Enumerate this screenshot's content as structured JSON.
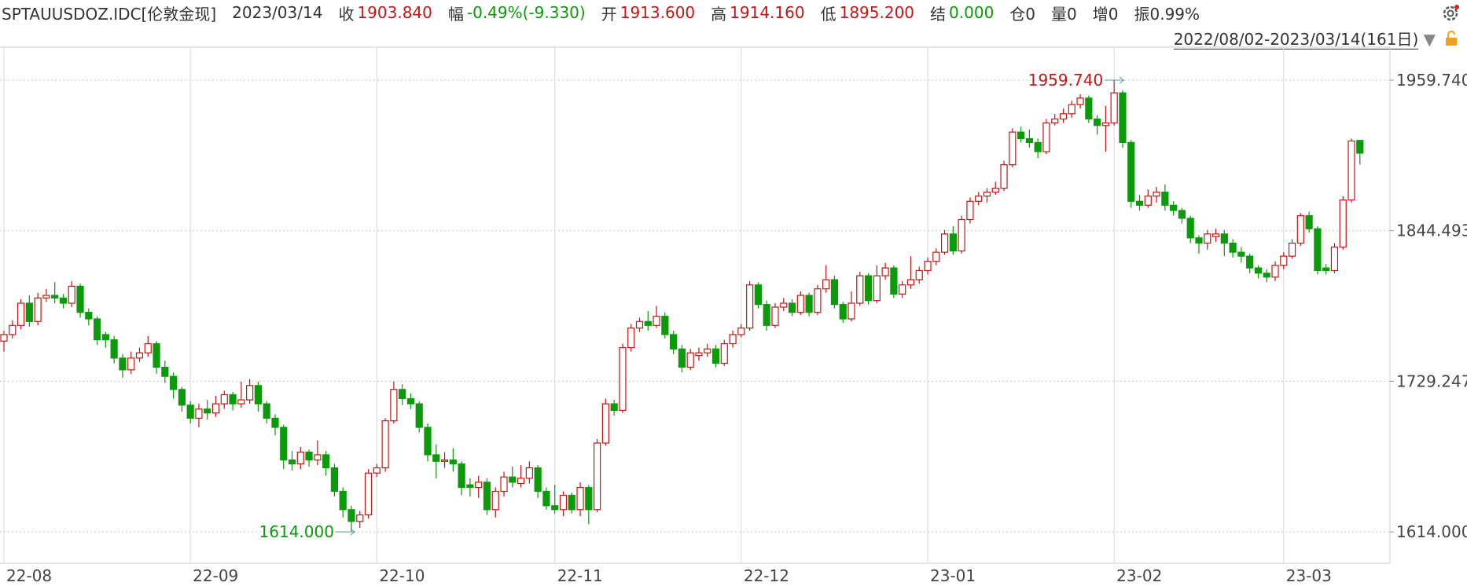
{
  "header": {
    "symbol": "SPTAUUSDOZ.IDC[伦敦金现]",
    "date": "2023/03/14",
    "close_label": "收",
    "close": "1903.840",
    "change_label": "幅",
    "change": "-0.49%(-9.330)",
    "open_label": "开",
    "open": "1913.600",
    "high_label": "高",
    "high": "1914.160",
    "low_label": "低",
    "low": "1895.200",
    "settle_label": "结",
    "settle": "0.000",
    "position": "仓0",
    "volume": "量0",
    "increase": "增0",
    "amplitude": "振0.99%",
    "range": "2022/08/02-2023/03/14(161日)"
  },
  "chart_data": {
    "type": "candlestick",
    "categories": [
      "22-08",
      null,
      null,
      null,
      null,
      null,
      null,
      null,
      null,
      null,
      null,
      null,
      null,
      null,
      null,
      null,
      null,
      null,
      null,
      null,
      null,
      null,
      "22-09",
      null,
      null,
      null,
      null,
      null,
      null,
      null,
      null,
      null,
      null,
      null,
      null,
      null,
      null,
      null,
      null,
      null,
      null,
      null,
      null,
      null,
      "22-10",
      null,
      null,
      null,
      null,
      null,
      null,
      null,
      null,
      null,
      null,
      null,
      null,
      null,
      null,
      null,
      null,
      null,
      null,
      null,
      null,
      "22-11",
      null,
      null,
      null,
      null,
      null,
      null,
      null,
      null,
      null,
      null,
      null,
      null,
      null,
      null,
      null,
      null,
      null,
      null,
      null,
      null,
      null,
      "22-12",
      null,
      null,
      null,
      null,
      null,
      null,
      null,
      null,
      null,
      null,
      null,
      null,
      null,
      null,
      null,
      null,
      null,
      null,
      null,
      null,
      null,
      "23-01",
      null,
      null,
      null,
      null,
      null,
      null,
      null,
      null,
      null,
      null,
      null,
      null,
      null,
      null,
      null,
      null,
      null,
      null,
      null,
      null,
      null,
      "23-02",
      null,
      null,
      null,
      null,
      null,
      null,
      null,
      null,
      null,
      null,
      null,
      null,
      null,
      null,
      null,
      null,
      null,
      null,
      null,
      "23-03",
      null,
      null,
      null,
      null,
      null,
      null,
      null,
      null,
      null
    ],
    "open": [
      1760,
      1765,
      1772,
      1789,
      1775,
      1793,
      1795,
      1793,
      1789,
      1802,
      1782,
      1777,
      1765,
      1761,
      1747,
      1738,
      1747,
      1751,
      1758,
      1740,
      1733,
      1723,
      1711,
      1701,
      1708,
      1705,
      1712,
      1719,
      1712,
      1715,
      1726,
      1712,
      1701,
      1694,
      1669,
      1666,
      1675,
      1669,
      1673,
      1663,
      1645,
      1631,
      1622,
      1627,
      1659,
      1663,
      1699,
      1723,
      1716,
      1712,
      1694,
      1673,
      1668,
      1669,
      1666,
      1650,
      1648,
      1652,
      1631,
      1645,
      1656,
      1651,
      1655,
      1663,
      1645,
      1634,
      1631,
      1642,
      1631,
      1648,
      1631,
      1682,
      1712,
      1707,
      1755,
      1770,
      1775,
      1772,
      1779,
      1765,
      1754,
      1740,
      1749,
      1751,
      1754,
      1743,
      1758,
      1765,
      1770,
      1803,
      1788,
      1772,
      1786,
      1789,
      1782,
      1795,
      1782,
      1800,
      1807,
      1788,
      1777,
      1789,
      1810,
      1791,
      1810,
      1816,
      1796,
      1803,
      1807,
      1814,
      1821,
      1828,
      1842,
      1829,
      1853,
      1867,
      1871,
      1874,
      1877,
      1895,
      1920,
      1915,
      1912,
      1905,
      1927,
      1930,
      1934,
      1941,
      1946,
      1930,
      1925,
      1927,
      1950,
      1912,
      1867,
      1864,
      1871,
      1874,
      1864,
      1860,
      1854,
      1839,
      1835,
      1840,
      1842,
      1835,
      1828,
      1825,
      1816,
      1812,
      1809,
      1818,
      1825,
      1835,
      1856,
      1846,
      1816,
      1814,
      1832,
      1868,
      1913.6
    ],
    "high": [
      1768,
      1776,
      1792,
      1795,
      1797,
      1800,
      1805,
      1796,
      1806,
      1804,
      1785,
      1779,
      1767,
      1764,
      1750,
      1752,
      1755,
      1764,
      1760,
      1745,
      1736,
      1725,
      1714,
      1712,
      1715,
      1718,
      1722,
      1721,
      1729,
      1731,
      1729,
      1714,
      1704,
      1696,
      1676,
      1679,
      1677,
      1684,
      1676,
      1666,
      1648,
      1634,
      1630,
      1662,
      1666,
      1701,
      1729,
      1727,
      1720,
      1714,
      1697,
      1681,
      1675,
      1678,
      1668,
      1655,
      1657,
      1655,
      1648,
      1660,
      1664,
      1665,
      1668,
      1665,
      1648,
      1650,
      1645,
      1644,
      1652,
      1650,
      1685,
      1716,
      1715,
      1758,
      1773,
      1778,
      1783,
      1787,
      1782,
      1768,
      1757,
      1754,
      1755,
      1758,
      1757,
      1761,
      1768,
      1773,
      1806,
      1805,
      1791,
      1789,
      1793,
      1792,
      1798,
      1797,
      1803,
      1818,
      1810,
      1790,
      1798,
      1813,
      1812,
      1818,
      1820,
      1818,
      1806,
      1825,
      1817,
      1824,
      1831,
      1845,
      1848,
      1856,
      1870,
      1874,
      1877,
      1882,
      1898,
      1923,
      1924,
      1922,
      1915,
      1930,
      1934,
      1938,
      1944,
      1949,
      1948,
      1933,
      1940,
      1959.74,
      1952,
      1914,
      1872,
      1876,
      1878,
      1880,
      1867,
      1862,
      1856,
      1841,
      1845,
      1846,
      1845,
      1838,
      1832,
      1827,
      1818,
      1815,
      1821,
      1828,
      1838,
      1858,
      1859,
      1848,
      1819,
      1835,
      1871,
      1915,
      1914.16
    ],
    "low": [
      1752,
      1762,
      1769,
      1771,
      1772,
      1790,
      1789,
      1785,
      1786,
      1778,
      1772,
      1757,
      1755,
      1743,
      1732,
      1735,
      1744,
      1748,
      1735,
      1728,
      1716,
      1706,
      1697,
      1694,
      1700,
      1702,
      1708,
      1707,
      1709,
      1712,
      1706,
      1697,
      1688,
      1662,
      1661,
      1662,
      1664,
      1665,
      1657,
      1641,
      1625,
      1614,
      1617,
      1624,
      1656,
      1660,
      1697,
      1711,
      1708,
      1690,
      1668,
      1655,
      1663,
      1660,
      1642,
      1641,
      1640,
      1627,
      1625,
      1641,
      1648,
      1648,
      1651,
      1640,
      1631,
      1628,
      1626,
      1628,
      1626,
      1620,
      1629,
      1680,
      1703,
      1705,
      1752,
      1767,
      1768,
      1770,
      1762,
      1750,
      1736,
      1738,
      1745,
      1748,
      1740,
      1741,
      1755,
      1763,
      1768,
      1785,
      1768,
      1770,
      1783,
      1779,
      1780,
      1779,
      1780,
      1797,
      1785,
      1774,
      1775,
      1787,
      1788,
      1789,
      1807,
      1793,
      1793,
      1800,
      1804,
      1811,
      1818,
      1826,
      1826,
      1827,
      1850,
      1864,
      1866,
      1872,
      1875,
      1893,
      1912,
      1908,
      1900,
      1903,
      1925,
      1927,
      1931,
      1938,
      1927,
      1918,
      1905,
      1925,
      1908,
      1862,
      1860,
      1862,
      1866,
      1860,
      1856,
      1850,
      1835,
      1827,
      1830,
      1836,
      1825,
      1824,
      1820,
      1812,
      1808,
      1805,
      1806,
      1815,
      1823,
      1833,
      1843,
      1811,
      1811,
      1812,
      1830,
      1866,
      1895.2
    ],
    "close": [
      1765,
      1772,
      1789,
      1775,
      1793,
      1795,
      1793,
      1789,
      1802,
      1782,
      1777,
      1761,
      1761,
      1747,
      1738,
      1747,
      1751,
      1758,
      1740,
      1733,
      1723,
      1711,
      1701,
      1708,
      1705,
      1712,
      1719,
      1712,
      1715,
      1726,
      1712,
      1701,
      1694,
      1669,
      1666,
      1675,
      1669,
      1673,
      1663,
      1645,
      1631,
      1622,
      1627,
      1659,
      1663,
      1699,
      1723,
      1716,
      1712,
      1694,
      1673,
      1668,
      1669,
      1666,
      1648,
      1648,
      1652,
      1631,
      1645,
      1656,
      1652,
      1655,
      1663,
      1645,
      1634,
      1631,
      1642,
      1631,
      1648,
      1631,
      1682,
      1712,
      1707,
      1755,
      1770,
      1775,
      1772,
      1779,
      1765,
      1754,
      1740,
      1751,
      1751,
      1754,
      1743,
      1758,
      1765,
      1770,
      1803,
      1788,
      1772,
      1786,
      1789,
      1782,
      1795,
      1782,
      1800,
      1807,
      1788,
      1777,
      1789,
      1810,
      1791,
      1810,
      1816,
      1796,
      1803,
      1807,
      1814,
      1821,
      1828,
      1842,
      1829,
      1853,
      1867,
      1871,
      1874,
      1877,
      1895,
      1920,
      1915,
      1912,
      1905,
      1927,
      1930,
      1934,
      1941,
      1946,
      1930,
      1925,
      1927,
      1950,
      1912,
      1867,
      1864,
      1871,
      1874,
      1864,
      1860,
      1854,
      1839,
      1835,
      1842,
      1842,
      1835,
      1828,
      1825,
      1816,
      1812,
      1809,
      1818,
      1825,
      1835,
      1856,
      1846,
      1814,
      1814,
      1832,
      1868,
      1913.17,
      1903.84
    ],
    "up_color": "#c81515",
    "down_color": "#0a9a0a",
    "ylim": [
      1590,
      1985
    ],
    "yticks": [
      {
        "value": 1614,
        "label": "1614.000"
      },
      {
        "value": 1729.247,
        "label": "1729.247"
      },
      {
        "value": 1844.493,
        "label": "1844.493"
      },
      {
        "value": 1959.74,
        "label": "1959.740"
      }
    ],
    "grid": true,
    "annotations": {
      "max": "1959.740",
      "min": "1614.000"
    }
  }
}
